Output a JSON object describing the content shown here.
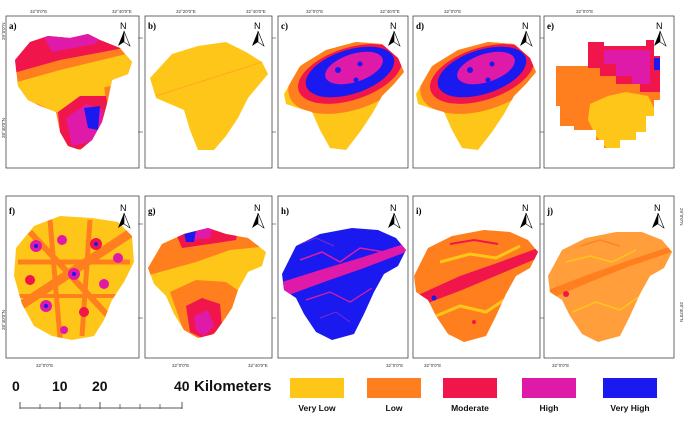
{
  "panels": [
    {
      "label": "a)",
      "north": "N",
      "top_coords": [
        "32°0'0\"E",
        "32°40'0\"E"
      ],
      "left_coords": [
        "29°0'0\"N",
        "28°40'0\"N"
      ],
      "right_coords": []
    },
    {
      "label": "b)",
      "north": "N",
      "top_coords": [
        "32°20'0\"E",
        "32°40'0\"E"
      ],
      "left_coords": [],
      "right_coords": []
    },
    {
      "label": "c)",
      "north": "N",
      "top_coords": [
        "32°0'0\"E",
        "32°40'0\"E"
      ],
      "left_coords": [],
      "right_coords": []
    },
    {
      "label": "d)",
      "north": "N",
      "top_coords": [
        "32°0'0\"E"
      ],
      "left_coords": [],
      "right_coords": []
    },
    {
      "label": "e)",
      "north": "N",
      "top_coords": [
        "32°0'0\"E"
      ],
      "left_coords": [],
      "right_coords": []
    },
    {
      "label": "f)",
      "north": "N",
      "bottom_coords": [
        "32°0'0\"E"
      ],
      "left_coords": [
        "28°40'0\"N"
      ],
      "right_coords": []
    },
    {
      "label": "g)",
      "north": "N",
      "bottom_coords": [
        "32°0'0\"E",
        "32°40'0\"E"
      ],
      "left_coords": [],
      "right_coords": []
    },
    {
      "label": "h)",
      "north": "N",
      "bottom_coords": [
        "32°0'0\"E"
      ],
      "left_coords": [],
      "right_coords": []
    },
    {
      "label": "i)",
      "north": "N",
      "bottom_coords": [
        "32°0'0\"E"
      ],
      "left_coords": [],
      "right_coords": []
    },
    {
      "label": "j)",
      "north": "N",
      "bottom_coords": [
        "32°0'0\"E"
      ],
      "left_coords": [],
      "right_coords": [
        "29°0'0\"N",
        "28°40'0\"N"
      ]
    }
  ],
  "scale_bar": {
    "ticks": [
      "0",
      "10",
      "20",
      "40"
    ],
    "unit": "Kilometers"
  },
  "legend": [
    {
      "label": "Very Low",
      "color": "#FFC61A"
    },
    {
      "label": "Low",
      "color": "#FF7F1E"
    },
    {
      "label": "Moderate",
      "color": "#F0164B"
    },
    {
      "label": "High",
      "color": "#E01AA8"
    },
    {
      "label": "Very High",
      "color": "#1A1AF0"
    }
  ]
}
